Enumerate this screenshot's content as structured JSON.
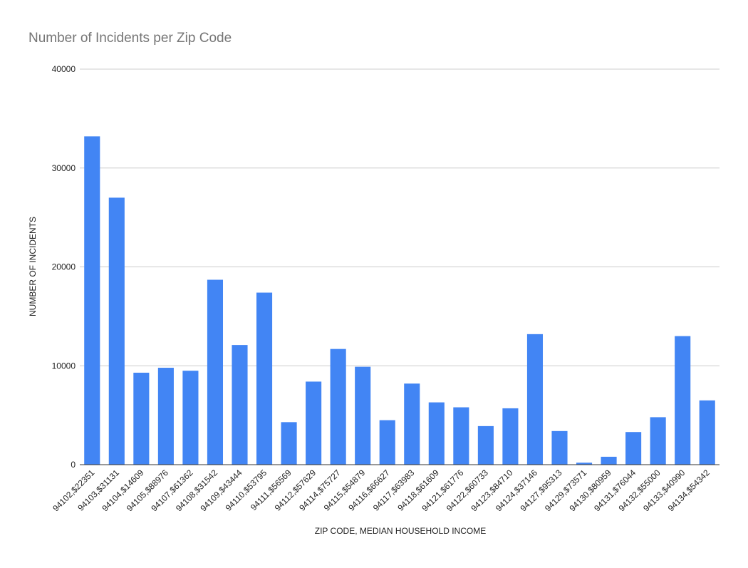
{
  "chart_data": {
    "type": "bar",
    "title": "Number of Incidents per Zip Code",
    "xlabel": "ZIP CODE, MEDIAN HOUSEHOLD INCOME",
    "ylabel": "NUMBER OF INCIDENTS",
    "ylim": [
      0,
      40000
    ],
    "yticks": [
      "0",
      "10000",
      "20000",
      "30000",
      "40000"
    ],
    "grid": true,
    "bar_color": "#4285f4",
    "categories": [
      "94102,$22351",
      "94103,$31131",
      "94104,$14609",
      "94105,$88976",
      "94107,$61362",
      "94108,$31542",
      "94109,$43444",
      "94110,$53795",
      "94111,$56569",
      "94112,$57629",
      "94114,$75727",
      "94115,$54879",
      "94116,$66627",
      "94117,$63983",
      "94118,$61609",
      "94121,$61776",
      "94122,$60733",
      "94123,$84710",
      "94124,$37146",
      "94127,$95313",
      "94129,$73571",
      "94130,$80959",
      "94131,$76044",
      "94132,$55000",
      "94133,$40990",
      "94134,$54342"
    ],
    "values": [
      33200,
      27000,
      9300,
      9800,
      9500,
      18700,
      12100,
      17400,
      4300,
      8400,
      11700,
      9900,
      4500,
      8200,
      6300,
      5800,
      3900,
      5700,
      13200,
      3400,
      200,
      800,
      3300,
      4800,
      13000,
      6500
    ]
  }
}
